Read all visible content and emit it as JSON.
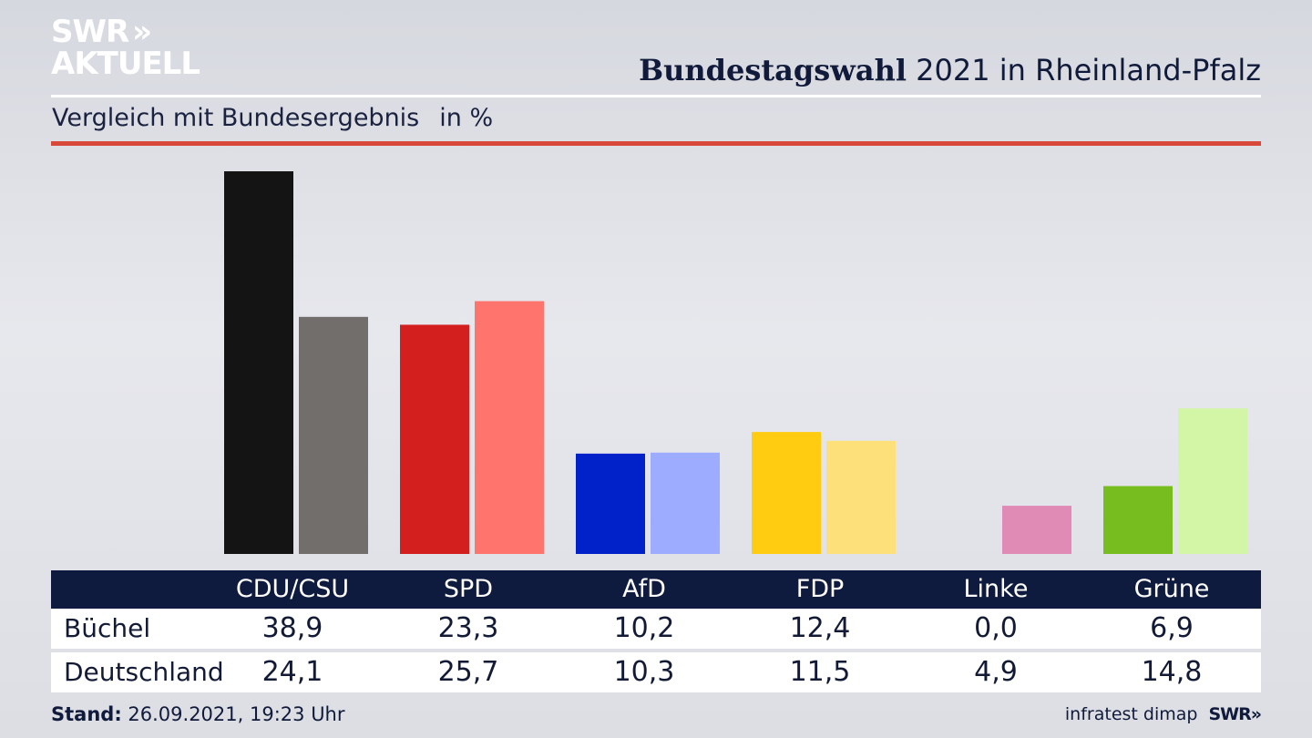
{
  "brand": {
    "logo_line1": "SWR",
    "logo_arrows": "»",
    "logo_line2": "AKTUELL"
  },
  "header": {
    "title_bold": "Bundestagswahl",
    "title_rest": "2021 in Rheinland-Pfalz",
    "subtitle": "Vergleich mit Bundesergebnis",
    "unit": "in %"
  },
  "colors": {
    "accent_rule": "#d9493a",
    "table_header_bg": "#0f1a3f"
  },
  "chart_data": {
    "type": "bar",
    "categories": [
      "CDU/CSU",
      "SPD",
      "AfD",
      "FDP",
      "Linke",
      "Grüne"
    ],
    "series": [
      {
        "name": "Büchel",
        "values": [
          38.9,
          23.3,
          10.2,
          12.4,
          0.0,
          6.9
        ],
        "colors": [
          "#141414",
          "#d41f1f",
          "#0022c8",
          "#ffcc11",
          "#ffcc11",
          "#78bd1f"
        ]
      },
      {
        "name": "Deutschland",
        "values": [
          24.1,
          25.7,
          10.3,
          11.5,
          4.9,
          14.8
        ],
        "colors": [
          "#716e6c",
          "#ff756e",
          "#9eacff",
          "#fde079",
          "#e08ab6",
          "#d3f5a6"
        ]
      }
    ],
    "ylim": [
      0,
      38.9
    ],
    "grid": false,
    "legend": "table below"
  },
  "table": {
    "headers": [
      "CDU/CSU",
      "SPD",
      "AfD",
      "FDP",
      "Linke",
      "Grüne"
    ],
    "rows": [
      {
        "label": "Büchel",
        "values": [
          "38,9",
          "23,3",
          "10,2",
          "12,4",
          "0,0",
          "6,9"
        ]
      },
      {
        "label": "Deutschland",
        "values": [
          "24,1",
          "25,7",
          "10,3",
          "11,5",
          "4,9",
          "14,8"
        ]
      }
    ]
  },
  "footer": {
    "stand_label": "Stand:",
    "stand_value": "26.09.2021, 19:23 Uhr",
    "source": "infratest dimap",
    "brand": "SWR»"
  }
}
